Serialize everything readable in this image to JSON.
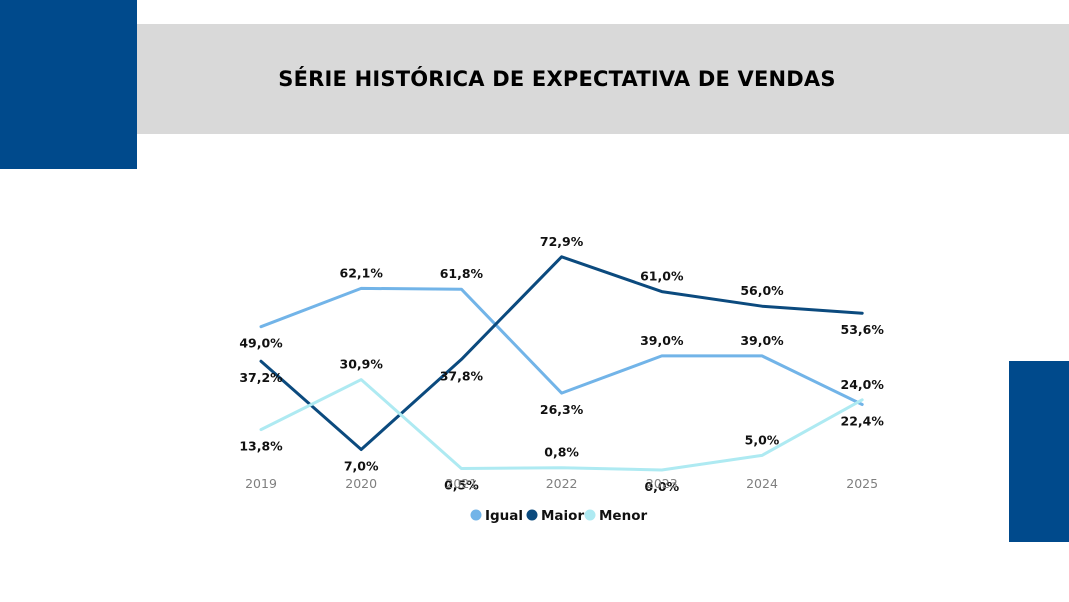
{
  "title": "SÉRIE HISTÓRICA DE EXPECTATIVA DE VENDAS",
  "colors": {
    "accent": "#004a8c",
    "title_band": "#d9d9d9",
    "igual": "#72b4e8",
    "maior": "#0b4a7e",
    "menor": "#aeeaf2"
  },
  "chart_data": {
    "type": "line",
    "title": "SÉRIE HISTÓRICA DE EXPECTATIVA DE VENDAS",
    "xlabel": "",
    "ylabel": "",
    "x": [
      "2019",
      "2020",
      "2021",
      "2022",
      "2023",
      "2024",
      "2025"
    ],
    "ylim": [
      0,
      80
    ],
    "grid": false,
    "legend": "bottom",
    "series": [
      {
        "name": "Igual",
        "color": "#72b4e8",
        "values": [
          49.0,
          62.1,
          61.8,
          26.3,
          39.0,
          39.0,
          22.4
        ],
        "labels": [
          "49,0%",
          "62,1%",
          "61,8%",
          "26,3%",
          "39,0%",
          "39,0%",
          "22,4%"
        ]
      },
      {
        "name": "Maior",
        "color": "#0b4a7e",
        "values": [
          37.2,
          7.0,
          37.8,
          72.9,
          61.0,
          56.0,
          53.6
        ],
        "labels": [
          "37,2%",
          "7,0%",
          "37,8%",
          "72,9%",
          "61,0%",
          "56,0%",
          "53,6%"
        ]
      },
      {
        "name": "Menor",
        "color": "#aeeaf2",
        "values": [
          13.8,
          30.9,
          0.5,
          0.8,
          0.0,
          5.0,
          24.0
        ],
        "labels": [
          "13,8%",
          "30,9%",
          "0,5%",
          "0,8%",
          "0,0%",
          "5,0%",
          "24,0%"
        ]
      }
    ]
  }
}
